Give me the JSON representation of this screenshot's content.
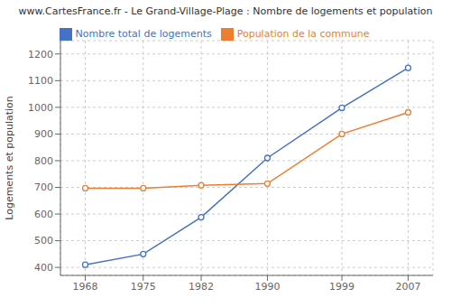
{
  "chart_data": {
    "type": "line",
    "title": "www.CartesFrance.fr - Le Grand-Village-Plage : Nombre de logements et population",
    "y_label": "Logements et population",
    "x": [
      1968,
      1975,
      1982,
      1990,
      1999,
      2007
    ],
    "series": [
      {
        "name": "Nombre total de logements",
        "color": "#4472c4",
        "marker": "circle",
        "values": [
          410,
          450,
          588,
          810,
          998,
          1148
        ]
      },
      {
        "name": "Population de la commune",
        "color": "#ed7d31",
        "marker": "circle",
        "values": [
          697,
          697,
          708,
          714,
          900,
          981
        ]
      }
    ],
    "xlim": [
      1965,
      2010
    ],
    "xticks": [
      1968,
      1975,
      1982,
      1990,
      1999,
      2007
    ],
    "ylim": [
      370,
      1250
    ],
    "yticks": [
      400,
      500,
      600,
      700,
      800,
      900,
      1000,
      1100,
      1200
    ],
    "grid": true,
    "legend": "top"
  }
}
